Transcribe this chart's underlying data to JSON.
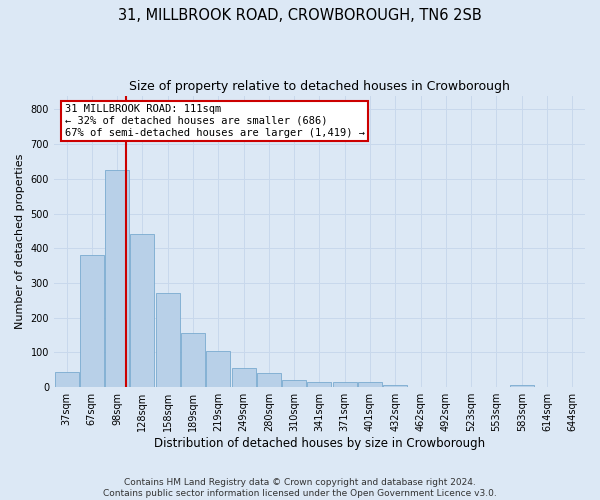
{
  "title": "31, MILLBROOK ROAD, CROWBOROUGH, TN6 2SB",
  "subtitle": "Size of property relative to detached houses in Crowborough",
  "xlabel": "Distribution of detached houses by size in Crowborough",
  "ylabel": "Number of detached properties",
  "categories": [
    "37sqm",
    "67sqm",
    "98sqm",
    "128sqm",
    "158sqm",
    "189sqm",
    "219sqm",
    "249sqm",
    "280sqm",
    "310sqm",
    "341sqm",
    "371sqm",
    "401sqm",
    "432sqm",
    "462sqm",
    "492sqm",
    "523sqm",
    "553sqm",
    "583sqm",
    "614sqm",
    "644sqm"
  ],
  "values": [
    45,
    380,
    625,
    440,
    270,
    155,
    105,
    55,
    40,
    20,
    15,
    15,
    15,
    5,
    0,
    0,
    0,
    0,
    5,
    0,
    0
  ],
  "bar_color": "#b8d0e8",
  "bar_edge_color": "#7aaacf",
  "bar_linewidth": 0.6,
  "grid_color": "#c8d8ec",
  "background_color": "#dce8f5",
  "property_line_x": 2.35,
  "annotation_text": "31 MILLBROOK ROAD: 111sqm\n← 32% of detached houses are smaller (686)\n67% of semi-detached houses are larger (1,419) →",
  "annotation_box_color": "#ffffff",
  "annotation_box_edge": "#cc0000",
  "annotation_text_size": 7.5,
  "line_color": "#cc0000",
  "ylim": [
    0,
    840
  ],
  "yticks": [
    0,
    100,
    200,
    300,
    400,
    500,
    600,
    700,
    800
  ],
  "footer": "Contains HM Land Registry data © Crown copyright and database right 2024.\nContains public sector information licensed under the Open Government Licence v3.0.",
  "title_fontsize": 10.5,
  "subtitle_fontsize": 9,
  "xlabel_fontsize": 8.5,
  "ylabel_fontsize": 8,
  "tick_fontsize": 7,
  "footer_fontsize": 6.5
}
